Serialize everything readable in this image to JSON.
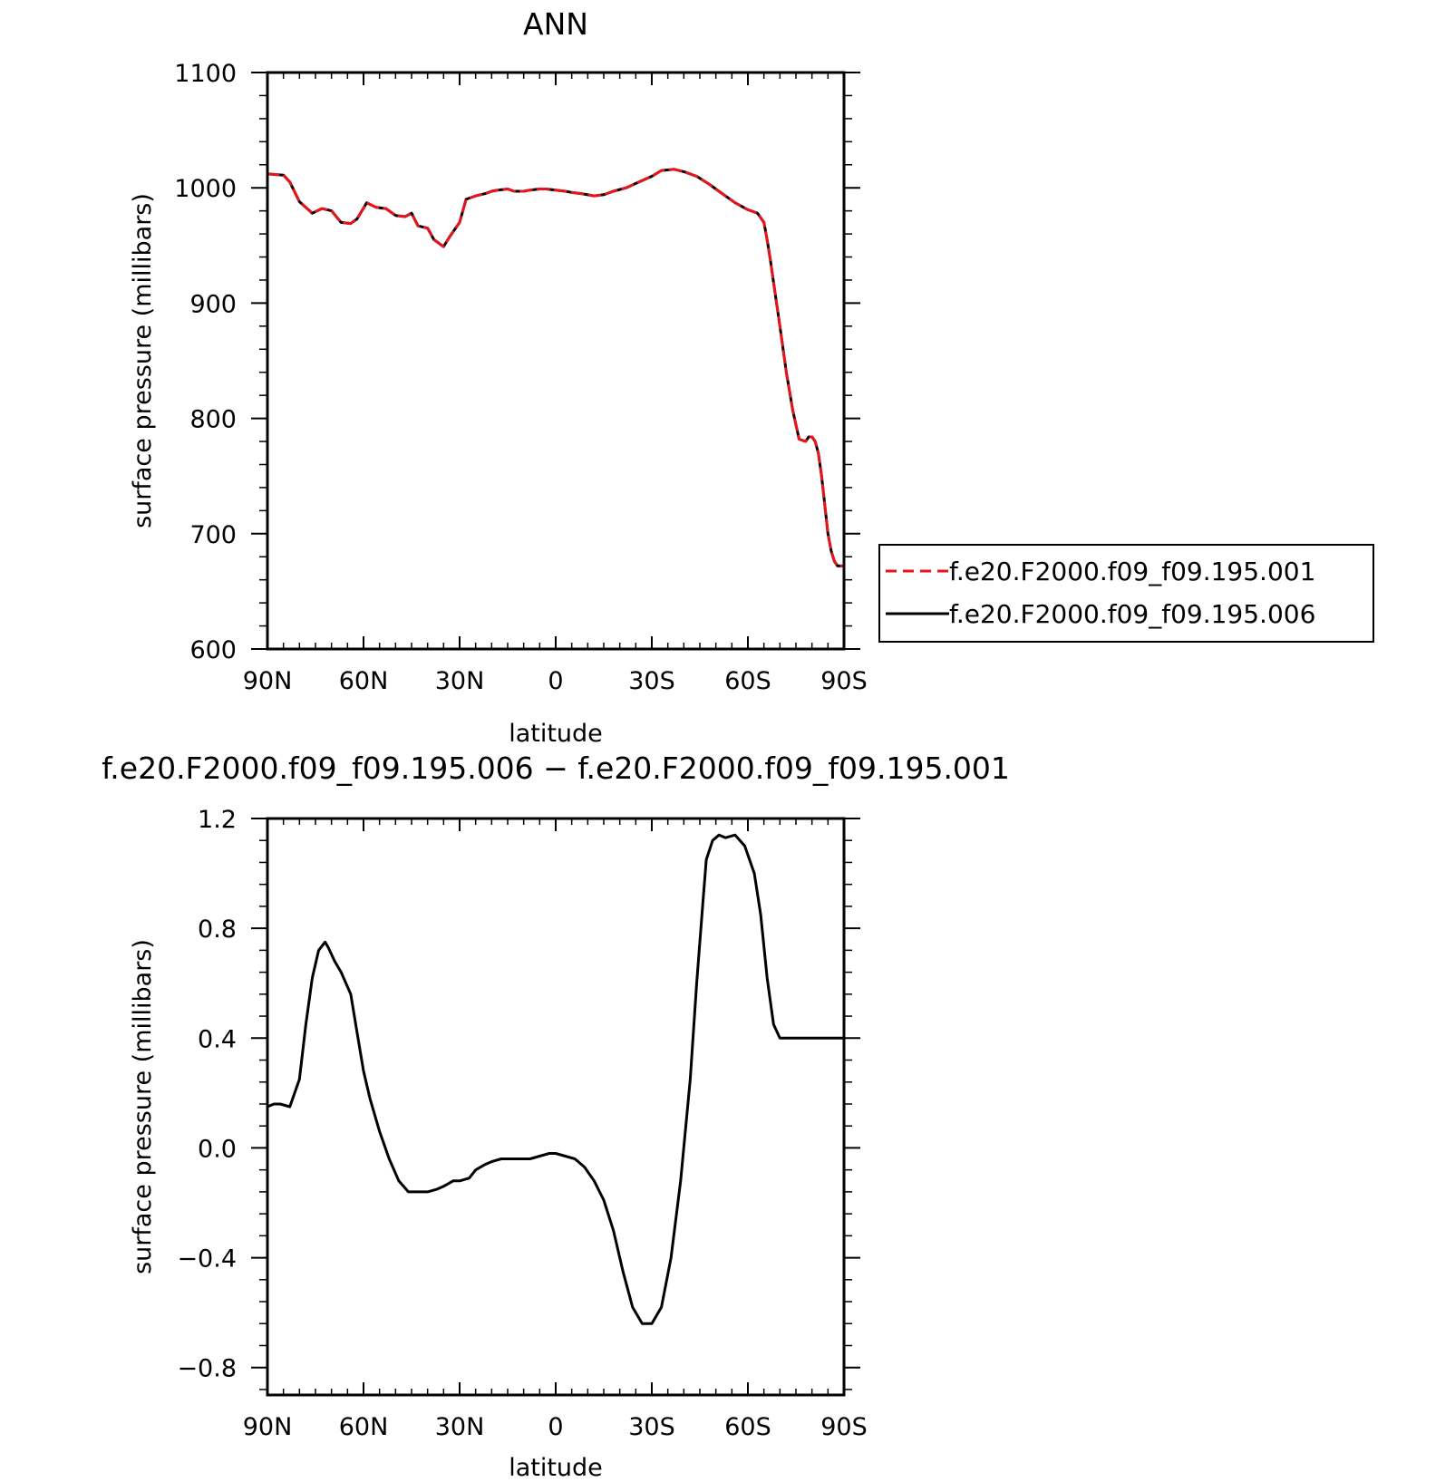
{
  "chart_data": [
    {
      "type": "line",
      "title": "ANN",
      "xlabel": "latitude",
      "ylabel": "surface pressure (millibars)",
      "x_reversed": true,
      "xlim": [
        90,
        -90
      ],
      "ylim": [
        600,
        1100
      ],
      "xticks": [
        90,
        60,
        30,
        0,
        -30,
        -60,
        -90
      ],
      "xtick_labels": [
        "90N",
        "60N",
        "30N",
        "0",
        "30S",
        "60S",
        "90S"
      ],
      "yticks": [
        600,
        700,
        800,
        900,
        1000,
        1100
      ],
      "ytick_labels": [
        "600",
        "700",
        "800",
        "900",
        "1000",
        "1100"
      ],
      "grid": false,
      "legend": "right",
      "series": [
        {
          "name": "f.e20.F2000.f09_f09.195.001",
          "color": "#e8141b",
          "dash": "dashed",
          "x": [
            90,
            85,
            83,
            80,
            76,
            73,
            70,
            67,
            64,
            62,
            59,
            56,
            53,
            50,
            47,
            45,
            43,
            40,
            38,
            35,
            33,
            30,
            28,
            25,
            22,
            20,
            18,
            15,
            13,
            10,
            8,
            5,
            3,
            0,
            -3,
            -5,
            -8,
            -12,
            -15,
            -18,
            -22,
            -26,
            -30,
            -33,
            -37,
            -40,
            -44,
            -48,
            -52,
            -56,
            -60,
            -63,
            -65,
            -66,
            -67,
            -68,
            -70,
            -72,
            -74,
            -76,
            -78,
            -79,
            -80,
            -81,
            -82,
            -83,
            -84,
            -85,
            -86,
            -87,
            -88,
            -90
          ],
          "y": [
            1012,
            1011,
            1005,
            988,
            978,
            982,
            980,
            970,
            969,
            973,
            987,
            983,
            982,
            976,
            975,
            978,
            967,
            965,
            955,
            949,
            958,
            970,
            990,
            993,
            995,
            997,
            998,
            999,
            997,
            997,
            998,
            999,
            999,
            998,
            997,
            996,
            995,
            993,
            994,
            997,
            1000,
            1005,
            1010,
            1015,
            1016,
            1014,
            1010,
            1003,
            995,
            987,
            981,
            978,
            970,
            955,
            938,
            918,
            880,
            840,
            807,
            782,
            780,
            784,
            784,
            780,
            770,
            750,
            725,
            700,
            685,
            676,
            672,
            672
          ]
        },
        {
          "name": "f.e20.F2000.f09_f09.195.006",
          "color": "#000000",
          "dash": "solid",
          "x": [
            90,
            85,
            83,
            80,
            76,
            73,
            70,
            67,
            64,
            62,
            59,
            56,
            53,
            50,
            47,
            45,
            43,
            40,
            38,
            35,
            33,
            30,
            28,
            25,
            22,
            20,
            18,
            15,
            13,
            10,
            8,
            5,
            3,
            0,
            -3,
            -5,
            -8,
            -12,
            -15,
            -18,
            -22,
            -26,
            -30,
            -33,
            -37,
            -40,
            -44,
            -48,
            -52,
            -56,
            -60,
            -63,
            -65,
            -66,
            -67,
            -68,
            -70,
            -72,
            -74,
            -76,
            -78,
            -79,
            -80,
            -81,
            -82,
            -83,
            -84,
            -85,
            -86,
            -87,
            -88,
            -90
          ],
          "y": [
            1012,
            1011,
            1005,
            988,
            978,
            982,
            980,
            970,
            969,
            973,
            987,
            983,
            982,
            976,
            975,
            978,
            967,
            965,
            955,
            949,
            958,
            970,
            990,
            993,
            995,
            997,
            998,
            999,
            997,
            997,
            998,
            999,
            999,
            998,
            997,
            996,
            995,
            993,
            994,
            997,
            1000,
            1005,
            1010,
            1015,
            1016,
            1014,
            1010,
            1003,
            995,
            987,
            981,
            978,
            970,
            955,
            938,
            918,
            880,
            840,
            807,
            782,
            780,
            784,
            784,
            780,
            770,
            750,
            725,
            700,
            685,
            676,
            672,
            672
          ]
        }
      ]
    },
    {
      "type": "line",
      "title": "f.e20.F2000.f09_f09.195.006 − f.e20.F2000.f09_f09.195.001",
      "xlabel": "latitude",
      "ylabel": "surface pressure (millibars)",
      "x_reversed": true,
      "xlim": [
        90,
        -90
      ],
      "ylim": [
        -0.9,
        1.2
      ],
      "xticks": [
        90,
        60,
        30,
        0,
        -30,
        -60,
        -90
      ],
      "xtick_labels": [
        "90N",
        "60N",
        "30N",
        "0",
        "30S",
        "60S",
        "90S"
      ],
      "yticks": [
        -0.8,
        -0.4,
        0.0,
        0.4,
        0.8,
        1.2
      ],
      "ytick_labels": [
        "−0.8",
        "−0.4",
        "0.0",
        "0.4",
        "0.8",
        "1.2"
      ],
      "grid": false,
      "series": [
        {
          "color": "#000000",
          "dash": "solid",
          "x": [
            90,
            88,
            86,
            83,
            80,
            78,
            76,
            74,
            72,
            71,
            69,
            67,
            64,
            62,
            60,
            58,
            55,
            52,
            49,
            46,
            43,
            40,
            37,
            35,
            32,
            30,
            27,
            25,
            22,
            20,
            17,
            14,
            11,
            8,
            5,
            2,
            0,
            -3,
            -6,
            -9,
            -12,
            -15,
            -18,
            -21,
            -24,
            -27,
            -30,
            -33,
            -36,
            -39,
            -42,
            -44,
            -46,
            -47,
            -49,
            -51,
            -53,
            -56,
            -59,
            -62,
            -64,
            -66,
            -68,
            -70,
            -72,
            -74,
            -76,
            -78,
            -80,
            -82,
            -84,
            -86,
            -88,
            -90
          ],
          "y": [
            0.15,
            0.16,
            0.16,
            0.15,
            0.25,
            0.45,
            0.62,
            0.72,
            0.75,
            0.73,
            0.68,
            0.64,
            0.56,
            0.42,
            0.28,
            0.18,
            0.06,
            -0.04,
            -0.12,
            -0.16,
            -0.16,
            -0.16,
            -0.15,
            -0.14,
            -0.12,
            -0.12,
            -0.11,
            -0.08,
            -0.06,
            -0.05,
            -0.04,
            -0.04,
            -0.04,
            -0.04,
            -0.03,
            -0.02,
            -0.02,
            -0.03,
            -0.04,
            -0.07,
            -0.12,
            -0.19,
            -0.3,
            -0.45,
            -0.58,
            -0.64,
            -0.64,
            -0.58,
            -0.4,
            -0.12,
            0.25,
            0.6,
            0.9,
            1.05,
            1.12,
            1.14,
            1.13,
            1.14,
            1.1,
            1.0,
            0.85,
            0.62,
            0.45,
            0.4,
            0.4,
            0.4,
            0.4,
            0.4,
            0.4,
            0.4,
            0.4,
            0.4,
            0.4,
            0.4
          ]
        }
      ]
    }
  ]
}
